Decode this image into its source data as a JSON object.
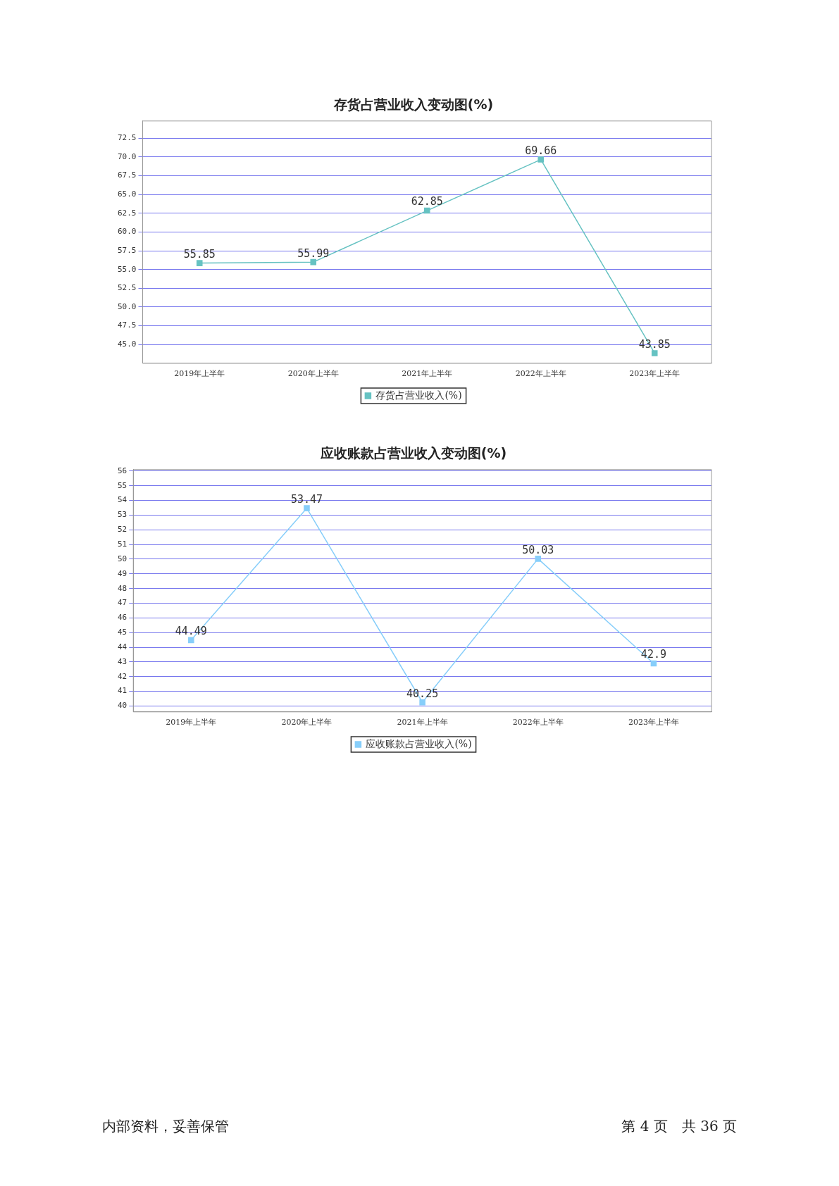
{
  "chart_data": [
    {
      "type": "line",
      "title": "存货占营业收入变动图(%)",
      "categories": [
        "2019年上半年",
        "2020年上半年",
        "2021年上半年",
        "2022年上半年",
        "2023年上半年"
      ],
      "series": [
        {
          "name": "存货占营业收入(%)",
          "color": "#66c2c2",
          "values": [
            55.85,
            55.99,
            62.85,
            69.66,
            43.85
          ]
        }
      ],
      "ylim": [
        42.5,
        74.8
      ],
      "yticks": [
        {
          "value": 45,
          "label": "45.0"
        },
        {
          "value": 47.5,
          "label": "47.5"
        },
        {
          "value": 50,
          "label": "50.0"
        },
        {
          "value": 52.5,
          "label": "52.5"
        },
        {
          "value": 55,
          "label": "55.0"
        },
        {
          "value": 57.5,
          "label": "57.5"
        },
        {
          "value": 60,
          "label": "60.0"
        },
        {
          "value": 62.5,
          "label": "62.5"
        },
        {
          "value": 65,
          "label": "65.0"
        },
        {
          "value": 67.5,
          "label": "67.5"
        },
        {
          "value": 70,
          "label": "70.0"
        },
        {
          "value": 72.5,
          "label": "72.5"
        }
      ],
      "grid": "y",
      "legend": "bottom",
      "marker": "square",
      "line_style": "solid",
      "data_labels": true
    },
    {
      "type": "line",
      "title": "应收账款占营业收入变动图(%)",
      "categories": [
        "2019年上半年",
        "2020年上半年",
        "2021年上半年",
        "2022年上半年",
        "2023年上半年"
      ],
      "series": [
        {
          "name": "应收账款占营业收入(%)",
          "color": "#87cefa",
          "values": [
            44.49,
            53.47,
            40.25,
            50.03,
            42.9
          ]
        }
      ],
      "ylim": [
        39.6,
        56.1
      ],
      "yticks": [
        40,
        41,
        42,
        43,
        44,
        45,
        46,
        47,
        48,
        49,
        50,
        51,
        52,
        53,
        54,
        55,
        56
      ],
      "grid": "y",
      "legend": "bottom",
      "marker": "square",
      "line_style": "solid",
      "data_labels": true,
      "annotations": [
        "内部资料，妥善保管",
        "第 4 页　共 36 页"
      ]
    }
  ]
}
